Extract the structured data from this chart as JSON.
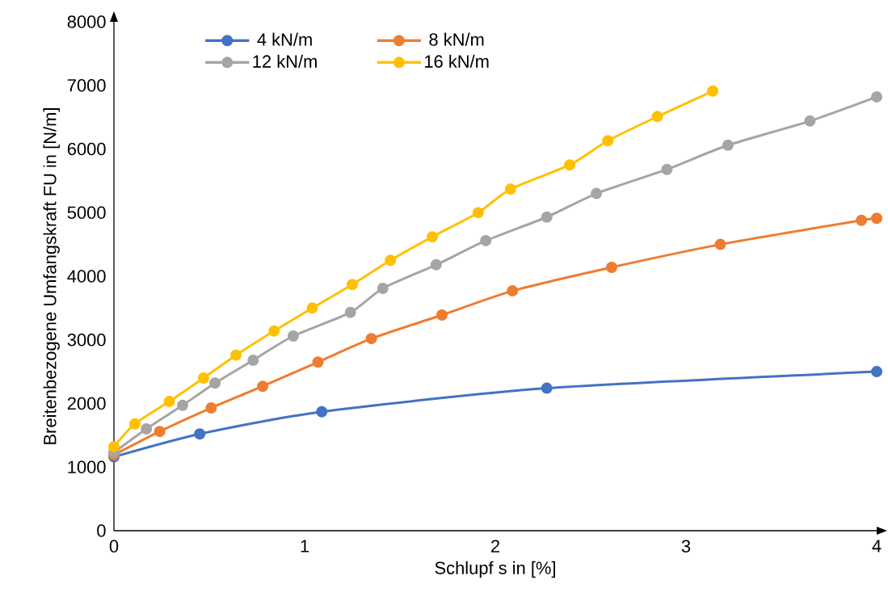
{
  "chart_data": {
    "type": "line",
    "xlabel": "Schlupf s in [%]",
    "ylabel": "Breitenbezogene Umfangskraft FU in [N/m]",
    "xlim": [
      0,
      4
    ],
    "ylim": [
      0,
      8000
    ],
    "xticks": [
      0,
      1,
      2,
      3,
      4
    ],
    "yticks": [
      0,
      1000,
      2000,
      3000,
      4000,
      5000,
      6000,
      7000,
      8000
    ],
    "grid": false,
    "legend": "top left",
    "marker": "circle",
    "line_style": "solid",
    "series": [
      {
        "name": "4 kN/m",
        "color": "#4472c4",
        "x": [
          0,
          0.45,
          1.09,
          2.27,
          4
        ],
        "values": [
          1160,
          1520,
          1870,
          2240,
          2500
        ]
      },
      {
        "name": "8 kN/m",
        "color": "#ed7d31",
        "x": [
          0,
          0.24,
          0.51,
          0.78,
          1.07,
          1.35,
          1.72,
          2.09,
          2.61,
          3.18,
          3.92,
          4
        ],
        "values": [
          1190,
          1560,
          1930,
          2270,
          2650,
          3020,
          3390,
          3770,
          4140,
          4500,
          4880,
          4910
        ]
      },
      {
        "name": "12 kN/m",
        "color": "#a5a5a5",
        "x": [
          0,
          0.17,
          0.36,
          0.53,
          0.73,
          0.94,
          1.24,
          1.41,
          1.69,
          1.95,
          2.27,
          2.53,
          2.9,
          3.22,
          3.65,
          4
        ],
        "values": [
          1230,
          1600,
          1970,
          2320,
          2680,
          3060,
          3430,
          3810,
          4180,
          4560,
          4930,
          5300,
          5680,
          6060,
          6440,
          6820
        ]
      },
      {
        "name": "16 kN/m",
        "color": "#ffc000",
        "x": [
          0,
          0.11,
          0.29,
          0.47,
          0.64,
          0.84,
          1.04,
          1.25,
          1.45,
          1.67,
          1.91,
          2.08,
          2.39,
          2.59,
          2.85,
          3.14
        ],
        "values": [
          1320,
          1680,
          2030,
          2400,
          2760,
          3140,
          3500,
          3870,
          4250,
          4620,
          5000,
          5370,
          5750,
          6130,
          6510,
          6910
        ]
      }
    ]
  }
}
